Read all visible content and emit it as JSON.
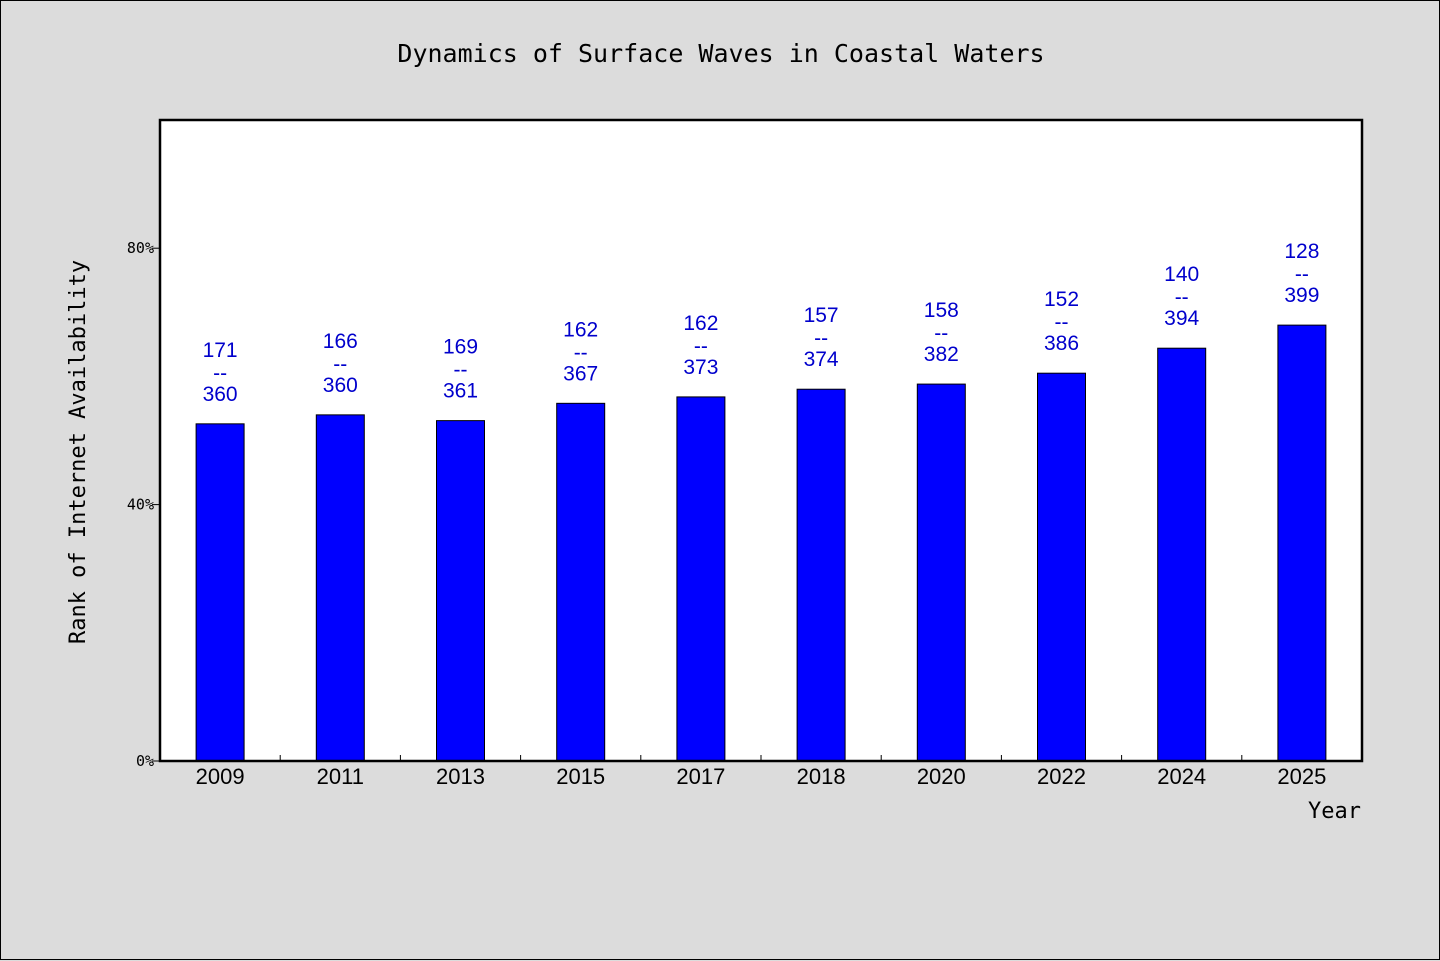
{
  "chart_data": {
    "type": "bar",
    "title": "Dynamics of Surface Waves in Coastal Waters",
    "xlabel": "Year",
    "ylabel": "Rank of Internet Availability",
    "categories": [
      "2009",
      "2011",
      "2013",
      "2015",
      "2017",
      "2018",
      "2020",
      "2022",
      "2024",
      "2025"
    ],
    "values": [
      52.6,
      54.0,
      53.1,
      55.8,
      56.8,
      58.0,
      58.8,
      60.5,
      64.4,
      68.0
    ],
    "bar_labels": [
      {
        "top": "171",
        "sep": "--",
        "bottom": "360"
      },
      {
        "top": "166",
        "sep": "--",
        "bottom": "360"
      },
      {
        "top": "169",
        "sep": "--",
        "bottom": "361"
      },
      {
        "top": "162",
        "sep": "--",
        "bottom": "367"
      },
      {
        "top": "162",
        "sep": "--",
        "bottom": "373"
      },
      {
        "top": "157",
        "sep": "--",
        "bottom": "374"
      },
      {
        "top": "158",
        "sep": "--",
        "bottom": "382"
      },
      {
        "top": "152",
        "sep": "--",
        "bottom": "386"
      },
      {
        "top": "140",
        "sep": "--",
        "bottom": "394"
      },
      {
        "top": "128",
        "sep": "--",
        "bottom": "399"
      }
    ],
    "ylim": [
      0,
      100
    ],
    "yticks": [
      0,
      40,
      80
    ],
    "ytick_labels": [
      "0%",
      "40%",
      "80%"
    ],
    "grid": false,
    "legend": "none",
    "colors": {
      "bar": "#0000ff",
      "bar_label": "#0000cc",
      "plot_background": "#ffffff",
      "figure_background": "#dcdcdc"
    }
  }
}
